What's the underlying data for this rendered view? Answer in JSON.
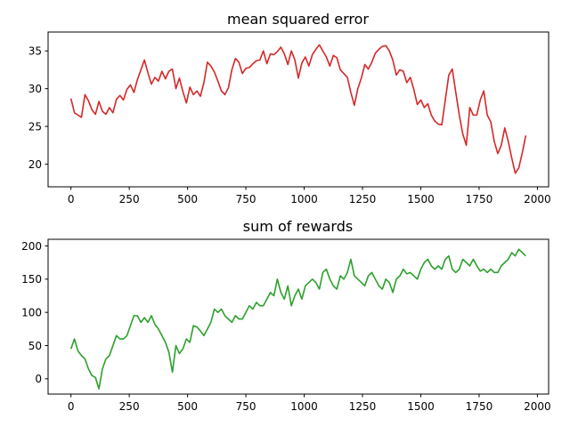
{
  "chart_data": [
    {
      "type": "line",
      "title": "mean squared error",
      "xlabel": "",
      "ylabel": "",
      "xlim": [
        -98,
        2048
      ],
      "ylim": [
        17,
        37.5
      ],
      "x_ticks": [
        0,
        250,
        500,
        750,
        1000,
        1250,
        1500,
        1750,
        2000
      ],
      "y_ticks": [
        20,
        25,
        30,
        35
      ],
      "grid": false,
      "legend": "none",
      "series": [
        {
          "color": "#d62728",
          "x": [
            0,
            15,
            30,
            45,
            60,
            75,
            90,
            105,
            120,
            135,
            150,
            165,
            180,
            195,
            210,
            225,
            240,
            255,
            270,
            285,
            300,
            315,
            330,
            345,
            360,
            375,
            390,
            405,
            420,
            435,
            450,
            465,
            480,
            495,
            510,
            525,
            540,
            555,
            570,
            585,
            600,
            615,
            630,
            645,
            660,
            675,
            690,
            705,
            720,
            735,
            750,
            765,
            780,
            795,
            810,
            825,
            840,
            855,
            870,
            885,
            900,
            915,
            930,
            945,
            960,
            975,
            990,
            1005,
            1020,
            1035,
            1050,
            1065,
            1080,
            1095,
            1110,
            1125,
            1140,
            1155,
            1170,
            1185,
            1200,
            1215,
            1230,
            1245,
            1260,
            1275,
            1290,
            1305,
            1320,
            1335,
            1350,
            1365,
            1380,
            1395,
            1410,
            1425,
            1440,
            1455,
            1470,
            1485,
            1500,
            1515,
            1530,
            1545,
            1560,
            1575,
            1590,
            1605,
            1620,
            1635,
            1650,
            1665,
            1680,
            1695,
            1710,
            1725,
            1740,
            1755,
            1770,
            1785,
            1800,
            1815,
            1830,
            1845,
            1860,
            1875,
            1890,
            1905,
            1920,
            1935,
            1950
          ],
          "values": [
            28.7,
            26.8,
            26.5,
            26.2,
            29.2,
            28.4,
            27.2,
            26.6,
            28.3,
            27.0,
            26.6,
            27.5,
            26.8,
            28.6,
            29.1,
            28.5,
            29.9,
            30.5,
            29.5,
            31.2,
            32.5,
            33.8,
            32.1,
            30.6,
            31.5,
            31.0,
            32.3,
            31.3,
            32.3,
            32.6,
            30.0,
            31.4,
            29.6,
            28.1,
            30.2,
            29.2,
            29.7,
            29.0,
            30.8,
            33.5,
            33.0,
            32.2,
            31.0,
            29.7,
            29.2,
            30.1,
            32.5,
            34.0,
            33.5,
            32.0,
            32.7,
            32.8,
            33.3,
            33.7,
            33.8,
            35.0,
            33.3,
            34.6,
            34.5,
            34.9,
            35.5,
            34.6,
            33.2,
            35.0,
            33.8,
            31.4,
            33.4,
            34.2,
            33.0,
            34.5,
            35.2,
            35.8,
            35.0,
            34.2,
            33.0,
            34.4,
            34.1,
            32.5,
            32.0,
            31.5,
            29.5,
            27.8,
            30.0,
            31.4,
            33.2,
            32.6,
            33.5,
            34.7,
            35.2,
            35.6,
            35.7,
            35.0,
            33.8,
            31.8,
            32.5,
            32.3,
            30.8,
            31.5,
            29.9,
            27.9,
            28.5,
            27.5,
            28.0,
            26.5,
            25.7,
            25.3,
            25.2,
            28.5,
            31.8,
            32.6,
            29.5,
            26.5,
            24.0,
            22.5,
            27.5,
            26.5,
            26.5,
            28.5,
            29.7,
            26.5,
            25.6,
            23.0,
            21.4,
            22.5,
            24.8,
            23.0,
            20.8,
            18.8,
            19.5,
            21.5,
            23.8
          ]
        }
      ]
    },
    {
      "type": "line",
      "title": "sum of rewards",
      "xlabel": "",
      "ylabel": "",
      "xlim": [
        -98,
        2048
      ],
      "ylim": [
        -23,
        210
      ],
      "x_ticks": [
        0,
        250,
        500,
        750,
        1000,
        1250,
        1500,
        1750,
        2000
      ],
      "y_ticks": [
        0,
        50,
        100,
        150,
        200
      ],
      "grid": false,
      "legend": "none",
      "series": [
        {
          "color": "#2ca02c",
          "x": [
            0,
            15,
            30,
            45,
            60,
            75,
            90,
            105,
            120,
            135,
            150,
            165,
            180,
            195,
            210,
            225,
            240,
            255,
            270,
            285,
            300,
            315,
            330,
            345,
            360,
            375,
            390,
            405,
            420,
            435,
            450,
            465,
            480,
            495,
            510,
            525,
            540,
            555,
            570,
            585,
            600,
            615,
            630,
            645,
            660,
            675,
            690,
            705,
            720,
            735,
            750,
            765,
            780,
            795,
            810,
            825,
            840,
            855,
            870,
            885,
            900,
            915,
            930,
            945,
            960,
            975,
            990,
            1005,
            1020,
            1035,
            1050,
            1065,
            1080,
            1095,
            1110,
            1125,
            1140,
            1155,
            1170,
            1185,
            1200,
            1215,
            1230,
            1245,
            1260,
            1275,
            1290,
            1305,
            1320,
            1335,
            1350,
            1365,
            1380,
            1395,
            1410,
            1425,
            1440,
            1455,
            1470,
            1485,
            1500,
            1515,
            1530,
            1545,
            1560,
            1575,
            1590,
            1605,
            1620,
            1635,
            1650,
            1665,
            1680,
            1695,
            1710,
            1725,
            1740,
            1755,
            1770,
            1785,
            1800,
            1815,
            1830,
            1845,
            1860,
            1875,
            1890,
            1905,
            1920,
            1935,
            1950
          ],
          "values": [
            45,
            60,
            42,
            35,
            30,
            15,
            5,
            2,
            -15,
            15,
            30,
            35,
            50,
            65,
            60,
            60,
            65,
            80,
            95,
            95,
            85,
            92,
            85,
            95,
            82,
            75,
            65,
            55,
            40,
            10,
            50,
            38,
            45,
            60,
            55,
            80,
            78,
            72,
            65,
            75,
            85,
            105,
            100,
            105,
            95,
            90,
            85,
            95,
            90,
            90,
            100,
            110,
            105,
            115,
            110,
            110,
            120,
            130,
            125,
            150,
            130,
            120,
            140,
            110,
            125,
            135,
            120,
            140,
            145,
            150,
            145,
            135,
            160,
            165,
            150,
            140,
            135,
            155,
            150,
            160,
            180,
            155,
            150,
            145,
            140,
            155,
            160,
            150,
            140,
            135,
            150,
            145,
            130,
            150,
            155,
            165,
            158,
            160,
            155,
            150,
            165,
            175,
            180,
            170,
            165,
            170,
            165,
            180,
            185,
            165,
            160,
            165,
            180,
            175,
            170,
            180,
            170,
            162,
            165,
            160,
            165,
            160,
            160,
            170,
            175,
            180,
            190,
            185,
            195,
            190,
            185
          ]
        }
      ]
    }
  ]
}
